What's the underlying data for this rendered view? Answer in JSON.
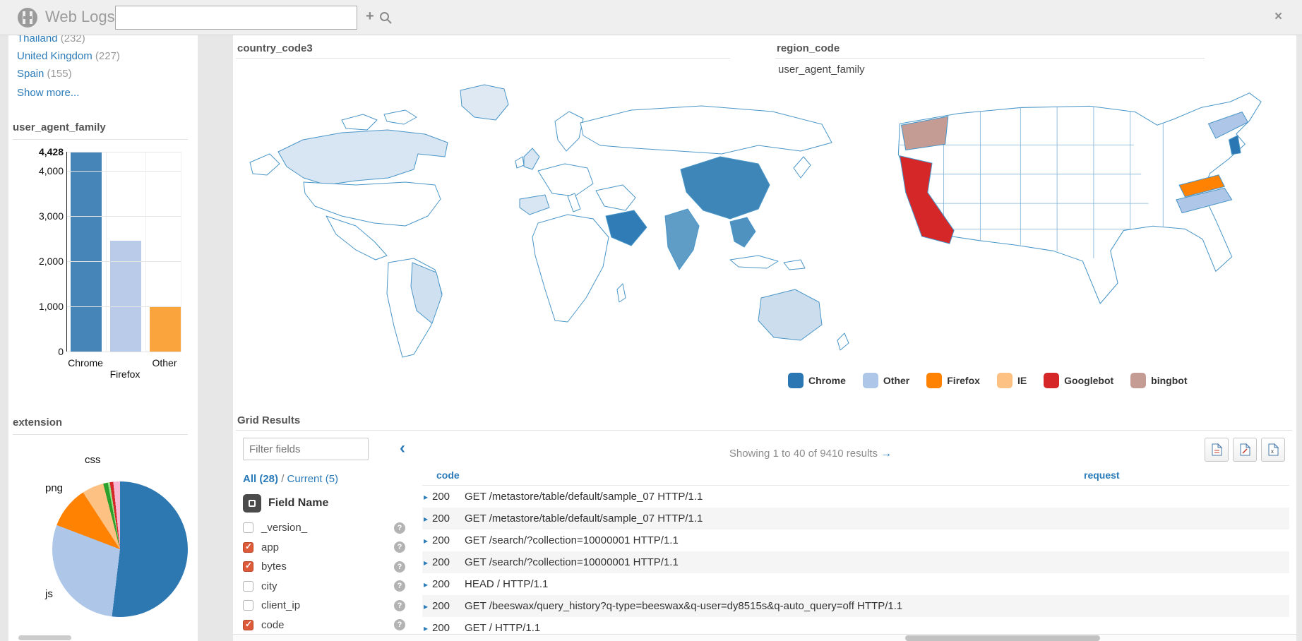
{
  "icons": {
    "plus": "+",
    "close": "×",
    "collapse": "‹",
    "help": "?",
    "row_expand": "▸",
    "results_arrow": "→"
  },
  "topbar": {
    "title": "Web Logs",
    "search_value": ""
  },
  "sidebar": {
    "countries": [
      {
        "label": "Thailand",
        "count": "(232)"
      },
      {
        "label": "United Kingdom",
        "count": "(227)"
      },
      {
        "label": "Spain",
        "count": "(155)"
      }
    ],
    "show_more": "Show more...",
    "bar_facet_title": "user_agent_family",
    "pie_facet_title": "extension"
  },
  "legend": {
    "items": [
      {
        "label": "Chrome",
        "color": "#2a77b3"
      },
      {
        "label": "Other",
        "color": "#aec7e8"
      },
      {
        "label": "Firefox",
        "color": "#ff8203"
      },
      {
        "label": "IE",
        "color": "#fdc283"
      },
      {
        "label": "Googlebot",
        "color": "#d62728"
      },
      {
        "label": "bingbot",
        "color": "#c49c94"
      }
    ]
  },
  "chart_data": [
    {
      "type": "bar",
      "title": "user_agent_family",
      "categories": [
        "Chrome",
        "Firefox",
        "Other"
      ],
      "values": [
        4428,
        2450,
        1000
      ],
      "ylim": [
        0,
        4428
      ],
      "yticks": [
        4428,
        4000,
        3000,
        2000,
        1000,
        0
      ],
      "colors": [
        "#4585b7",
        "#b9cbe8",
        "#f9a43d"
      ],
      "xlabel": "",
      "ylabel": "",
      "grid": true,
      "legend_position": "none"
    },
    {
      "type": "pie",
      "title": "extension",
      "slices": [
        {
          "label": "",
          "value": 51.9,
          "color": "#2e78b2"
        },
        {
          "label": "js",
          "value": 28.9,
          "color": "#aec7e8"
        },
        {
          "label": "png",
          "value": 10.0,
          "color": "#ff8203"
        },
        {
          "label": "css",
          "value": 5.2,
          "color": "#fdc283"
        },
        {
          "label": "",
          "value": 1.1,
          "color": "#2ca02c"
        },
        {
          "label": "",
          "value": 0.5,
          "color": "#98df8a"
        },
        {
          "label": "",
          "value": 0.8,
          "color": "#d62728"
        },
        {
          "label": "",
          "value": 1.6,
          "color": "#f7b6d2"
        }
      ],
      "labels": {
        "top": "css",
        "left": "png",
        "bottom": "js"
      }
    },
    {
      "type": "choropleth",
      "region": "world",
      "title": "country_code3",
      "fills": {
        "greenland": "#dfe9f4",
        "canada": "#d8e5f2",
        "brazil": "#cfe0f0",
        "uk": "#d8e5f2",
        "spain": "#d8e5f2",
        "saudi_arabia": "#2f7cb6",
        "india": "#5f9cc6",
        "china": "#3f86b8",
        "thailand": "#4f92c0",
        "australia": "#ccdeee"
      }
    },
    {
      "type": "choropleth",
      "region": "us-states",
      "title": "region_code",
      "subtitle": "user_agent_family",
      "fills": {
        "washington": "#c49c94",
        "california": "#d62728",
        "new_york": "#aec7e8",
        "new_jersey": "#2a77b3",
        "virginia": "#ff8203",
        "north_carolina": "#aec7e8"
      }
    }
  ],
  "grid": {
    "title": "Grid Results",
    "fields": {
      "filter_placeholder": "Filter fields",
      "all_label": "All (28)",
      "separator": "/",
      "current_label": "Current (5)",
      "header": "Field Name",
      "items": [
        {
          "name": "_version_",
          "checked": false
        },
        {
          "name": "app",
          "checked": true
        },
        {
          "name": "bytes",
          "checked": true
        },
        {
          "name": "city",
          "checked": false
        },
        {
          "name": "client_ip",
          "checked": false
        },
        {
          "name": "code",
          "checked": true
        }
      ]
    },
    "results": {
      "summary": "Showing 1 to 40 of 9410 results",
      "columns": [
        "code",
        "request"
      ],
      "rows": [
        {
          "code": "200",
          "request": "GET /metastore/table/default/sample_07 HTTP/1.1"
        },
        {
          "code": "200",
          "request": "GET /metastore/table/default/sample_07 HTTP/1.1"
        },
        {
          "code": "200",
          "request": "GET /search/?collection=10000001 HTTP/1.1"
        },
        {
          "code": "200",
          "request": "GET /search/?collection=10000001 HTTP/1.1"
        },
        {
          "code": "200",
          "request": "HEAD / HTTP/1.1"
        },
        {
          "code": "200",
          "request": "GET /beeswax/query_history?q-type=beeswax&q-user=dy8515s&q-auto_query=off HTTP/1.1"
        },
        {
          "code": "200",
          "request": "GET / HTTP/1.1"
        }
      ]
    }
  }
}
